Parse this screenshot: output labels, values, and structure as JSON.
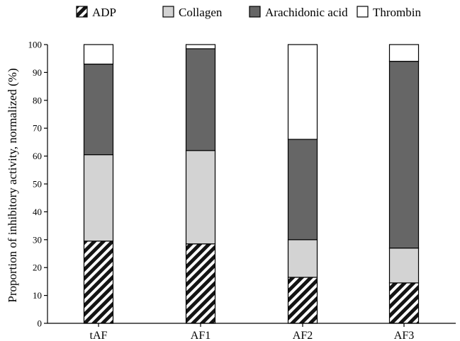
{
  "chart_data": {
    "type": "bar",
    "stacked": true,
    "title": "",
    "xlabel": "",
    "ylabel": "Proportion of inhibitory activity, normalized (%)",
    "ylim": [
      0,
      100
    ],
    "yticks": [
      0,
      10,
      20,
      30,
      40,
      50,
      60,
      70,
      80,
      90,
      100
    ],
    "grid": false,
    "legend_position": "top",
    "categories": [
      "tAF",
      "AF1",
      "AF2",
      "AF3"
    ],
    "series": [
      {
        "name": "ADP",
        "values": [
          29.5,
          28.5,
          16.5,
          14.5
        ],
        "color": "#141414",
        "pattern": "diagonal-hatch"
      },
      {
        "name": "Collagen",
        "values": [
          31,
          33.5,
          13.5,
          12.5
        ],
        "color": "#d3d3d3",
        "pattern": "solid"
      },
      {
        "name": "Arachidonic acid",
        "values": [
          32.5,
          36.5,
          36,
          67
        ],
        "color": "#666666",
        "pattern": "solid"
      },
      {
        "name": "Thrombin",
        "values": [
          7,
          1.5,
          34,
          6
        ],
        "color": "#ffffff",
        "pattern": "solid"
      }
    ]
  }
}
